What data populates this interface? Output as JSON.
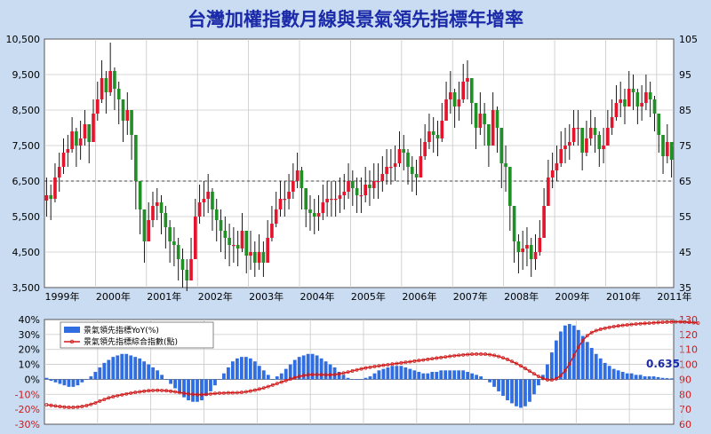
{
  "title": "台灣加權指數月線與景氣領先指標年增率",
  "colors": {
    "up": "#e4142d",
    "down": "#1f8f26",
    "bar": "#2f6de0",
    "line": "#d01818",
    "grid": "#c8c8c8",
    "title": "#1a2aa8",
    "bg": "#c9dcf2"
  },
  "chart_data": [
    {
      "type": "candlestick",
      "x_range": [
        "1999-01",
        "2011-12"
      ],
      "x_labels": [
        "1999年",
        "2000年",
        "2001年",
        "2002年",
        "2003年",
        "2004年",
        "2005年",
        "2006年",
        "2007年",
        "2008年",
        "2009年",
        "2010年",
        "2011年"
      ],
      "y_left": {
        "ticks": [
          "10,500",
          "9,500",
          "8,500",
          "7,500",
          "6,500",
          "5,500",
          "4,500",
          "3,500"
        ],
        "ylim": [
          3500,
          10500
        ]
      },
      "y_right": {
        "ticks": [
          "105",
          "95",
          "85",
          "75",
          "65",
          "55",
          "45",
          "35"
        ],
        "ylim": [
          35,
          105
        ]
      },
      "reference_line": 6500,
      "close": [
        6100,
        6000,
        6600,
        6900,
        7300,
        7400,
        7900,
        7500,
        7700,
        8100,
        7600,
        8400,
        8800,
        9400,
        9000,
        9600,
        9100,
        8800,
        8200,
        8500,
        7800,
        6500,
        5700,
        4800,
        5400,
        5800,
        5900,
        5600,
        5200,
        4800,
        4700,
        4300,
        4000,
        3700,
        4300,
        5500,
        5900,
        6000,
        6200,
        5700,
        5400,
        5100,
        4900,
        4700,
        4700,
        4600,
        5100,
        4400,
        4500,
        4200,
        4500,
        4200,
        4900,
        5300,
        5700,
        6000,
        6000,
        6200,
        6500,
        6800,
        6300,
        5700,
        5600,
        5500,
        5600,
        5900,
        6000,
        6000,
        6000,
        6100,
        6200,
        6500,
        6300,
        6100,
        6100,
        6400,
        6300,
        6500,
        6500,
        6700,
        6900,
        6900,
        7000,
        7400,
        7300,
        6900,
        6700,
        6600,
        7200,
        7600,
        7900,
        7800,
        7700,
        8200,
        8800,
        9000,
        8600,
        8800,
        9300,
        9400,
        8700,
        8000,
        8400,
        8100,
        7500,
        8500,
        8000,
        7000,
        6900,
        5800,
        4800,
        4500,
        4600,
        4700,
        4300,
        4500,
        4900,
        5800,
        6600,
        6800,
        7000,
        7400,
        7500,
        7600,
        8000,
        8000,
        7300,
        7700,
        8000,
        7800,
        7400,
        7500,
        8000,
        8300,
        8700,
        8800,
        8600,
        9100,
        9000,
        8600,
        8700,
        9000,
        8800,
        8400,
        7800,
        7200,
        7600,
        7100
      ],
      "high": [
        6600,
        6400,
        7000,
        7300,
        7700,
        7800,
        8300,
        8000,
        8200,
        8500,
        8100,
        8800,
        9300,
        9900,
        9600,
        10400,
        9700,
        9300,
        8700,
        9000,
        8300,
        7100,
        6400,
        5400,
        5900,
        6200,
        6300,
        6100,
        5800,
        5400,
        5200,
        4900,
        4600,
        4300,
        4900,
        6000,
        6400,
        6500,
        6700,
        6300,
        6000,
        5700,
        5500,
        5300,
        5200,
        5100,
        5600,
        5000,
        5100,
        4800,
        5000,
        4800,
        5400,
        5800,
        6200,
        6500,
        6500,
        6700,
        7000,
        7300,
        6900,
        6200,
        6100,
        6000,
        6100,
        6400,
        6500,
        6500,
        6500,
        6600,
        6700,
        7000,
        6800,
        6600,
        6600,
        6900,
        6800,
        7000,
        7000,
        7200,
        7400,
        7400,
        7500,
        7900,
        7800,
        7400,
        7200,
        7100,
        7700,
        8100,
        8400,
        8300,
        8200,
        8700,
        9300,
        9600,
        9100,
        9300,
        9800,
        9900,
        9200,
        8600,
        9000,
        8700,
        8100,
        9000,
        8600,
        7600,
        7500,
        6400,
        5400,
        5000,
        5100,
        5200,
        4900,
        5000,
        5400,
        6300,
        7100,
        7300,
        7500,
        7900,
        8000,
        8100,
        8500,
        8500,
        7900,
        8200,
        8500,
        8300,
        7900,
        8000,
        8500,
        8800,
        9200,
        9300,
        9100,
        9600,
        9500,
        9100,
        9200,
        9500,
        9300,
        8900,
        8400,
        7800,
        8100,
        7600
      ],
      "low": [
        5500,
        5400,
        5900,
        6200,
        6700,
        6900,
        7300,
        6900,
        7100,
        7500,
        7000,
        7700,
        8200,
        8700,
        8400,
        8900,
        8500,
        8100,
        7600,
        7800,
        7100,
        5700,
        5000,
        4200,
        4800,
        5200,
        5400,
        5000,
        4600,
        4200,
        4100,
        3700,
        3500,
        3400,
        3800,
        4900,
        5300,
        5500,
        5600,
        5100,
        4800,
        4500,
        4300,
        4100,
        4200,
        4100,
        4500,
        3900,
        4000,
        3800,
        4000,
        3800,
        4400,
        4800,
        5200,
        5500,
        5500,
        5700,
        6000,
        6300,
        5700,
        5200,
        5100,
        5000,
        5100,
        5400,
        5500,
        5500,
        5500,
        5600,
        5700,
        6000,
        5800,
        5600,
        5600,
        5900,
        5800,
        6000,
        6000,
        6200,
        6400,
        6400,
        6500,
        6900,
        6800,
        6400,
        6200,
        6100,
        6700,
        7100,
        7400,
        7300,
        7200,
        7600,
        8200,
        8400,
        8000,
        8200,
        8700,
        8800,
        8100,
        7400,
        7800,
        7500,
        6900,
        7900,
        7300,
        6300,
        6200,
        5100,
        4200,
        3900,
        4000,
        4100,
        3800,
        4000,
        4400,
        5300,
        6100,
        6300,
        6500,
        6900,
        7000,
        7100,
        7500,
        7500,
        6800,
        7200,
        7500,
        7300,
        6900,
        7000,
        7500,
        7800,
        8200,
        8300,
        8100,
        8600,
        8500,
        8100,
        8200,
        8500,
        8300,
        7900,
        7300,
        6700,
        7000,
        6600
      ],
      "note": "monthly open = previous close; values estimated from the picture"
    },
    {
      "type": "bar+line",
      "x_labels": [
        "1999年",
        "2000年",
        "2001年",
        "2002年",
        "2003年",
        "2004年",
        "2005年",
        "2006年",
        "2007年",
        "2008年",
        "2009年",
        "2010年",
        "2011年"
      ],
      "y_left": {
        "ticks": [
          "40%",
          "30%",
          "20%",
          "10%",
          "0%",
          "-10%",
          "-20%",
          "-30%"
        ],
        "ylim": [
          -30,
          40
        ]
      },
      "y_right": {
        "ticks": [
          "130",
          "120",
          "110",
          "100",
          "90",
          "80",
          "70",
          "60"
        ],
        "ylim": [
          60,
          130
        ]
      },
      "annotation": "0.635",
      "series": [
        {
          "name": "景氣領先指標YoY(%)",
          "type": "bar",
          "values": [
            1,
            -1,
            -2,
            -3,
            -4,
            -5,
            -5,
            -4,
            -2,
            0,
            2,
            5,
            8,
            11,
            13,
            15,
            16,
            17,
            17,
            16,
            15,
            14,
            12,
            10,
            8,
            6,
            3,
            0,
            -3,
            -6,
            -9,
            -12,
            -14,
            -15,
            -15,
            -14,
            -11,
            -8,
            -4,
            0,
            4,
            8,
            12,
            14,
            15,
            15,
            14,
            12,
            9,
            6,
            3,
            0,
            2,
            4,
            7,
            10,
            13,
            15,
            16,
            17,
            17,
            16,
            14,
            12,
            10,
            8,
            5,
            3,
            1,
            0,
            0,
            0,
            1,
            2,
            4,
            6,
            7,
            8,
            9,
            9,
            9,
            8,
            7,
            6,
            5,
            4,
            4,
            5,
            5,
            6,
            6,
            6,
            6,
            6,
            6,
            5,
            4,
            3,
            2,
            0,
            -2,
            -5,
            -8,
            -11,
            -14,
            -16,
            -18,
            -19,
            -18,
            -15,
            -10,
            -4,
            3,
            10,
            18,
            26,
            32,
            36,
            37,
            36,
            33,
            29,
            25,
            21,
            17,
            14,
            11,
            9,
            7,
            6,
            5,
            4,
            4,
            3,
            3,
            2,
            2,
            2,
            1.5,
            1,
            0.8,
            0.635
          ],
          "latest": 0.635
        },
        {
          "name": "景氣領先指標綜合指數(點)",
          "type": "line",
          "values": [
            73,
            72.6,
            72.2,
            71.8,
            71.5,
            71.3,
            71.3,
            71.5,
            71.9,
            72.5,
            73.3,
            74.3,
            75.5,
            76.6,
            77.6,
            78.4,
            79.1,
            79.7,
            80.3,
            80.8,
            81.3,
            81.7,
            82.1,
            82.4,
            82.6,
            82.7,
            82.6,
            82.4,
            82.1,
            81.7,
            81.2,
            80.7,
            80.3,
            80,
            79.8,
            79.8,
            80,
            80.3,
            80.6,
            80.8,
            80.9,
            81,
            81,
            81.1,
            81.3,
            81.7,
            82.2,
            82.8,
            83.5,
            84.3,
            85.2,
            86.2,
            87.2,
            88.2,
            89.2,
            90.2,
            91.1,
            91.9,
            92.6,
            93,
            93.2,
            93.2,
            93.1,
            93,
            93,
            93.2,
            93.6,
            94.2,
            94.9,
            95.6,
            96.3,
            97,
            97.6,
            98.1,
            98.6,
            99,
            99.4,
            99.8,
            100.2,
            100.6,
            101,
            101.4,
            101.8,
            102.2,
            102.6,
            103,
            103.4,
            103.8,
            104.2,
            104.6,
            105,
            105.4,
            105.8,
            106.1,
            106.4,
            106.6,
            106.8,
            106.9,
            106.9,
            106.8,
            106.5,
            106,
            105.3,
            104.4,
            103.3,
            102,
            100.6,
            99,
            97.3,
            95.5,
            93.7,
            92,
            90.6,
            89.7,
            89.6,
            90.4,
            92.5,
            95.8,
            100.4,
            106,
            111.5,
            116,
            119.2,
            121.3,
            122.6,
            123.5,
            124.2,
            124.8,
            125.3,
            125.7,
            126.1,
            126.4,
            126.7,
            127,
            127.2,
            127.4,
            127.6,
            127.8,
            128,
            128.2,
            128.3,
            128.4,
            128.5,
            128.5,
            128.4,
            128.2,
            127.9,
            127.6
          ]
        }
      ]
    }
  ]
}
